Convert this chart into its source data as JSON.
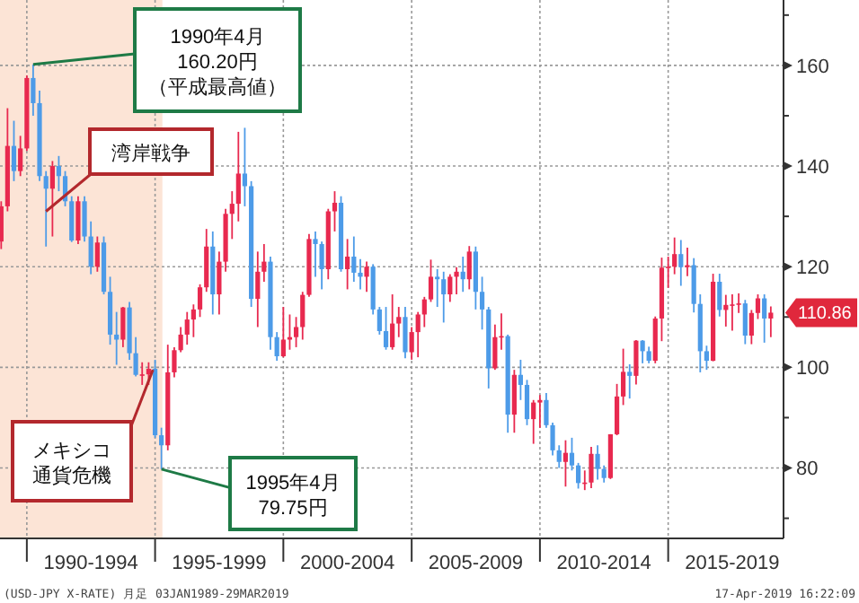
{
  "chart_data": {
    "type": "candlestick",
    "x": [
      "1989-01",
      "1989-04",
      "1989-07",
      "1989-10",
      "1990-01",
      "1990-04",
      "1990-07",
      "1990-10",
      "1991-01",
      "1991-04",
      "1991-07",
      "1991-10",
      "1992-01",
      "1992-04",
      "1992-07",
      "1992-10",
      "1993-01",
      "1993-04",
      "1993-07",
      "1993-10",
      "1994-01",
      "1994-04",
      "1994-07",
      "1994-10",
      "1995-01",
      "1995-04",
      "1995-07",
      "1995-10",
      "1996-01",
      "1996-04",
      "1996-07",
      "1996-10",
      "1997-01",
      "1997-04",
      "1997-07",
      "1997-10",
      "1998-01",
      "1998-04",
      "1998-07",
      "1998-10",
      "1999-01",
      "1999-04",
      "1999-07",
      "1999-10",
      "2000-01",
      "2000-04",
      "2000-07",
      "2000-10",
      "2001-01",
      "2001-04",
      "2001-07",
      "2001-10",
      "2002-01",
      "2002-04",
      "2002-07",
      "2002-10",
      "2003-01",
      "2003-04",
      "2003-07",
      "2003-10",
      "2004-01",
      "2004-04",
      "2004-07",
      "2004-10",
      "2005-01",
      "2005-04",
      "2005-07",
      "2005-10",
      "2006-01",
      "2006-04",
      "2006-07",
      "2006-10",
      "2007-01",
      "2007-04",
      "2007-07",
      "2007-10",
      "2008-01",
      "2008-04",
      "2008-07",
      "2008-10",
      "2009-01",
      "2009-04",
      "2009-07",
      "2009-10",
      "2010-01",
      "2010-04",
      "2010-07",
      "2010-10",
      "2011-01",
      "2011-04",
      "2011-07",
      "2011-10",
      "2012-01",
      "2012-04",
      "2012-07",
      "2012-10",
      "2013-01",
      "2013-04",
      "2013-07",
      "2013-10",
      "2014-01",
      "2014-04",
      "2014-07",
      "2014-10",
      "2015-01",
      "2015-04",
      "2015-07",
      "2015-10",
      "2016-01",
      "2016-04",
      "2016-07",
      "2016-10",
      "2017-01",
      "2017-04",
      "2017-07",
      "2017-10",
      "2018-01",
      "2018-04",
      "2018-07",
      "2018-10",
      "2019-01"
    ],
    "ohlc": [
      [
        125,
        133,
        123.5,
        132
      ],
      [
        132,
        151.5,
        131,
        144
      ],
      [
        144,
        149,
        137,
        139
      ],
      [
        139,
        146,
        138,
        143.5
      ],
      [
        143.5,
        158,
        143,
        157.5
      ],
      [
        157.5,
        160.2,
        150,
        152.5
      ],
      [
        152.5,
        155,
        137,
        138
      ],
      [
        138,
        139,
        124,
        135.5
      ],
      [
        135.5,
        141,
        126,
        140
      ],
      [
        140,
        142,
        135,
        138
      ],
      [
        138,
        139,
        132,
        133
      ],
      [
        133,
        134,
        124.9,
        125.2
      ],
      [
        125.2,
        134,
        124.5,
        133
      ],
      [
        133,
        134,
        125,
        126
      ],
      [
        126,
        129,
        118.5,
        120
      ],
      [
        120,
        126,
        119,
        124.8
      ],
      [
        124.8,
        126,
        114.5,
        115
      ],
      [
        115,
        118,
        104.5,
        106.5
      ],
      [
        106.5,
        111,
        100.5,
        105.5
      ],
      [
        105.5,
        112,
        104,
        111.9
      ],
      [
        111.9,
        113,
        101.5,
        102.8
      ],
      [
        102.8,
        106,
        98.2,
        98.5
      ],
      [
        98.5,
        101,
        96.5,
        98.6
      ],
      [
        98.6,
        101,
        96.5,
        99.7
      ],
      [
        99.7,
        101.5,
        86,
        86.5
      ],
      [
        86.5,
        88,
        79.75,
        84.5
      ],
      [
        84.5,
        104.5,
        83.5,
        99
      ],
      [
        99,
        104,
        98,
        103.4
      ],
      [
        103.4,
        108,
        103,
        106.5
      ],
      [
        106.5,
        111,
        104.5,
        109.5
      ],
      [
        109.5,
        112.5,
        106,
        111.5
      ],
      [
        111.5,
        116.5,
        110,
        115.9
      ],
      [
        115.9,
        127.5,
        115,
        124
      ],
      [
        124,
        127,
        110.5,
        114.5
      ],
      [
        114.5,
        123,
        110.5,
        121
      ],
      [
        121,
        131.5,
        119,
        130.5
      ],
      [
        130.5,
        135,
        125.5,
        132.5
      ],
      [
        132.5,
        146.8,
        129,
        138.5
      ],
      [
        138.5,
        147.6,
        132,
        136
      ],
      [
        136,
        137,
        112,
        113.6
      ],
      [
        113.6,
        123,
        108,
        119
      ],
      [
        119,
        124.5,
        117,
        121
      ],
      [
        121,
        122,
        103.5,
        106
      ],
      [
        106,
        107,
        101.3,
        102.2
      ],
      [
        102.2,
        112,
        102,
        105.5
      ],
      [
        105.5,
        110.5,
        103.5,
        106
      ],
      [
        106,
        110,
        104,
        108
      ],
      [
        108,
        115,
        105.5,
        114.4
      ],
      [
        114.4,
        126.5,
        114,
        125.5
      ],
      [
        125.5,
        127,
        118,
        124.5
      ],
      [
        124.5,
        125,
        115.5,
        119.5
      ],
      [
        119.5,
        131.5,
        117.5,
        131
      ],
      [
        131,
        135,
        127,
        132.7
      ],
      [
        132.7,
        134,
        119,
        119.5
      ],
      [
        119.5,
        125.5,
        115.5,
        122
      ],
      [
        122,
        126,
        117,
        118.8
      ],
      [
        118.8,
        121.5,
        115.5,
        118
      ],
      [
        118,
        121,
        115,
        120
      ],
      [
        120,
        120.5,
        110.5,
        111.5
      ],
      [
        111.5,
        112,
        106.5,
        107.2
      ],
      [
        107.2,
        112,
        103.5,
        104
      ],
      [
        104,
        114.5,
        103.5,
        108.7
      ],
      [
        108.7,
        112,
        106,
        110
      ],
      [
        110,
        112,
        101.8,
        103
      ],
      [
        103,
        108,
        101.5,
        107
      ],
      [
        107,
        111,
        102,
        110.5
      ],
      [
        110.5,
        114,
        108,
        113.5
      ],
      [
        113.5,
        121.4,
        113,
        118
      ],
      [
        118,
        119.5,
        112,
        117.5
      ],
      [
        117.5,
        119,
        108.9,
        114.5
      ],
      [
        114.5,
        118.5,
        113,
        118
      ],
      [
        118,
        119.9,
        114.5,
        119
      ],
      [
        119,
        122,
        115,
        117.5
      ],
      [
        117.5,
        124.1,
        115.5,
        123
      ],
      [
        123,
        124,
        111.5,
        115
      ],
      [
        115,
        118,
        107.5,
        111.5
      ],
      [
        111.5,
        112,
        95.8,
        99.8
      ],
      [
        99.8,
        108.5,
        99.5,
        106
      ],
      [
        106,
        110.7,
        103.5,
        106.2
      ],
      [
        106.2,
        106.5,
        87,
        90.6
      ],
      [
        90.6,
        99.5,
        87,
        98.5
      ],
      [
        98.5,
        101.5,
        93.5,
        96.5
      ],
      [
        96.5,
        97.5,
        88.5,
        89.7
      ],
      [
        89.7,
        93.5,
        84.8,
        93
      ],
      [
        93,
        94.5,
        88,
        93.5
      ],
      [
        93.5,
        94.9,
        88,
        88.5
      ],
      [
        88.5,
        89,
        82.5,
        83.5
      ],
      [
        83.5,
        84.5,
        80,
        81.2
      ],
      [
        81.2,
        85.5,
        76.3,
        83
      ],
      [
        83,
        86,
        79.5,
        80.5
      ],
      [
        80.5,
        81,
        75.9,
        77
      ],
      [
        77,
        79.5,
        75.6,
        77.1
      ],
      [
        77.1,
        84.2,
        76,
        82.8
      ],
      [
        82.8,
        84.5,
        77.7,
        79.8
      ],
      [
        79.8,
        80.5,
        77.1,
        78
      ],
      [
        78,
        86.7,
        77.8,
        86.7
      ],
      [
        86.7,
        96.7,
        86.5,
        94.2
      ],
      [
        94.2,
        103.7,
        92.5,
        99.1
      ],
      [
        99.1,
        100.6,
        93.8,
        98.3
      ],
      [
        98.3,
        105.4,
        96.6,
        105.3
      ],
      [
        105.3,
        105.4,
        100.8,
        103.2
      ],
      [
        103.2,
        104.1,
        100.8,
        101.3
      ],
      [
        101.3,
        110.1,
        100.8,
        109.7
      ],
      [
        109.7,
        121.8,
        105.2,
        119.8
      ],
      [
        119.8,
        122,
        115.8,
        120
      ],
      [
        120,
        125.8,
        118.5,
        122.5
      ],
      [
        122.5,
        125.3,
        116.2,
        119.9
      ],
      [
        119.9,
        123.8,
        118.1,
        120.3
      ],
      [
        120.3,
        121.7,
        110.9,
        112.6
      ],
      [
        112.6,
        114.5,
        99,
        103.2
      ],
      [
        103.2,
        104.3,
        99.5,
        101.3
      ],
      [
        101.3,
        118.6,
        101.2,
        117
      ],
      [
        117,
        118.6,
        110.1,
        111.4
      ],
      [
        111.4,
        114.4,
        108.1,
        112.4
      ],
      [
        112.4,
        114.5,
        107.3,
        112.5
      ],
      [
        112.5,
        114.7,
        110.8,
        112.7
      ],
      [
        112.7,
        113.4,
        104.6,
        106.3
      ],
      [
        106.3,
        111.4,
        104.6,
        110.8
      ],
      [
        110.8,
        114.5,
        109.6,
        113.7
      ],
      [
        113.7,
        114.5,
        104.9,
        109.7
      ],
      [
        109.7,
        112.1,
        106,
        110.86
      ]
    ],
    "colors": [
      "#e8294f",
      "#e8294f",
      "#4d9be8",
      "#e8294f",
      "#e8294f",
      "#4d9be8",
      "#4d9be8",
      "#4d9be8",
      "#e8294f",
      "#4d9be8",
      "#4d9be8",
      "#4d9be8",
      "#e8294f",
      "#4d9be8",
      "#4d9be8",
      "#e8294f",
      "#4d9be8",
      "#4d9be8",
      "#4d9be8",
      "#e8294f",
      "#4d9be8",
      "#4d9be8",
      "#e8294f",
      "#e8294f",
      "#4d9be8",
      "#4d9be8",
      "#e8294f",
      "#e8294f",
      "#e8294f",
      "#e8294f",
      "#e8294f",
      "#e8294f",
      "#e8294f",
      "#4d9be8",
      "#e8294f",
      "#e8294f",
      "#e8294f",
      "#e8294f",
      "#4d9be8",
      "#4d9be8",
      "#e8294f",
      "#e8294f",
      "#4d9be8",
      "#4d9be8",
      "#e8294f",
      "#e8294f",
      "#e8294f",
      "#e8294f",
      "#e8294f",
      "#4d9be8",
      "#4d9be8",
      "#e8294f",
      "#e8294f",
      "#4d9be8",
      "#e8294f",
      "#4d9be8",
      "#4d9be8",
      "#e8294f",
      "#4d9be8",
      "#4d9be8",
      "#4d9be8",
      "#e8294f",
      "#e8294f",
      "#4d9be8",
      "#e8294f",
      "#e8294f",
      "#e8294f",
      "#e8294f",
      "#4d9be8",
      "#4d9be8",
      "#e8294f",
      "#e8294f",
      "#4d9be8",
      "#e8294f",
      "#4d9be8",
      "#4d9be8",
      "#4d9be8",
      "#e8294f",
      "#e8294f",
      "#4d9be8",
      "#e8294f",
      "#4d9be8",
      "#4d9be8",
      "#e8294f",
      "#e8294f",
      "#4d9be8",
      "#4d9be8",
      "#4d9be8",
      "#e8294f",
      "#4d9be8",
      "#4d9be8",
      "#e8294f",
      "#e8294f",
      "#4d9be8",
      "#4d9be8",
      "#e8294f",
      "#e8294f",
      "#e8294f",
      "#4d9be8",
      "#e8294f",
      "#4d9be8",
      "#4d9be8",
      "#e8294f",
      "#e8294f",
      "#e8294f",
      "#e8294f",
      "#4d9be8",
      "#e8294f",
      "#4d9be8",
      "#4d9be8",
      "#4d9be8",
      "#e8294f",
      "#4d9be8",
      "#e8294f",
      "#e8294f",
      "#e8294f",
      "#4d9be8",
      "#e8294f",
      "#e8294f",
      "#4d9be8",
      "#e8294f"
    ],
    "xlim": [
      "1988-12-15",
      "2019-07-01"
    ],
    "xticks": [
      {
        "value": "1990-01-01",
        "label": null
      },
      {
        "value": "1992-07-01",
        "label": "1990-1994"
      },
      {
        "value": "1995-01-01",
        "label": null
      },
      {
        "value": "1997-07-01",
        "label": "1995-1999"
      },
      {
        "value": "2000-01-01",
        "label": null
      },
      {
        "value": "2002-07-01",
        "label": "2000-2004"
      },
      {
        "value": "2005-01-01",
        "label": null
      },
      {
        "value": "2007-07-01",
        "label": "2005-2009"
      },
      {
        "value": "2010-01-01",
        "label": null
      },
      {
        "value": "2012-07-01",
        "label": "2010-2014"
      },
      {
        "value": "2015-01-01",
        "label": null
      },
      {
        "value": "2017-07-01",
        "label": "2015-2019"
      }
    ],
    "ylim": [
      66,
      173
    ],
    "yticks": [
      {
        "value": 70,
        "label": null
      },
      80,
      {
        "value": 90,
        "label": null
      },
      100,
      {
        "value": 110,
        "label": null
      },
      120,
      {
        "value": 130,
        "label": null
      },
      140,
      {
        "value": 150,
        "label": null
      },
      160,
      {
        "value": 170,
        "label": null
      }
    ],
    "grid": true,
    "bands": [
      {
        "axis": "x",
        "from": "1988-12-15",
        "to": "1995-04-15",
        "color": "#fce4d6"
      }
    ],
    "annotations": [
      {
        "text": "1990年4月160.20円（平成最高値）",
        "x": "1990-04",
        "y": 160.2
      },
      {
        "text": "湾岸戦争",
        "x": "1990-10",
        "y": 131
      },
      {
        "text": "メキシコ通貨危機",
        "x": "1994-12",
        "y": 99.5
      },
      {
        "text": "1995年4月79.75円",
        "x": "1995-04",
        "y": 79.75
      },
      {
        "text": "110.86",
        "x": "2019-01",
        "y": 110.86
      },
      "(USD-JPY X-RATE)  月足 03JAN1989-29MAR2019",
      "17-Apr-2019 16:22:09"
    ]
  }
}
